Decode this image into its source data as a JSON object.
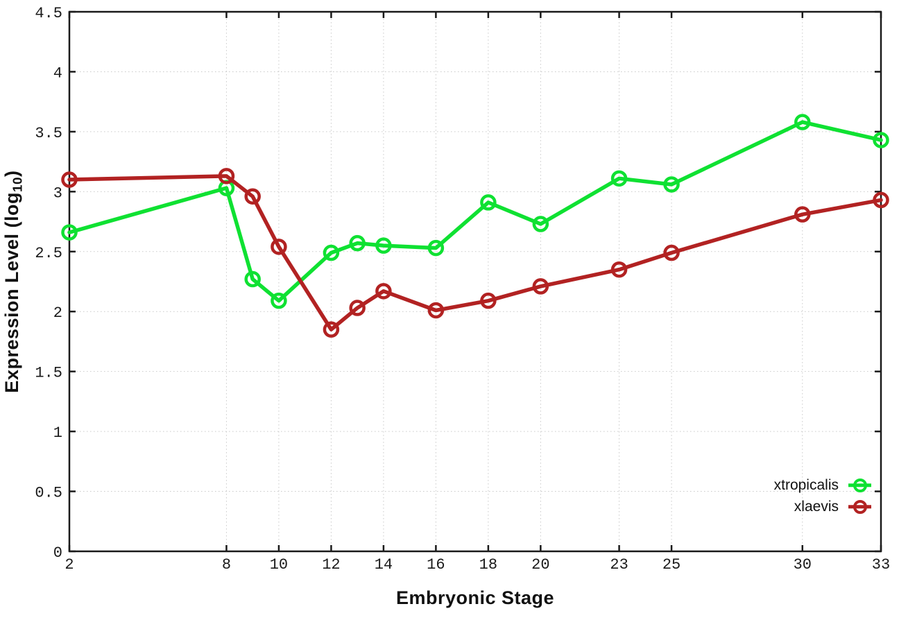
{
  "figure": {
    "y_axis_title": {
      "main": "Expression Level (log",
      "sub": "10",
      "close": ")"
    },
    "x_axis_title": "Embryonic Stage",
    "background": "#ffffff",
    "border_color": "#1a1a1a",
    "grid_color": "#c9c9c9",
    "text_color": "#1a1a1a"
  },
  "chart_data": {
    "type": "line",
    "title": "",
    "xlabel": "Embryonic Stage",
    "ylabel": "Expression Level (log10)",
    "xlim": [
      2,
      33
    ],
    "ylim": [
      0,
      4.5
    ],
    "x_ticks": [
      2,
      8,
      10,
      12,
      14,
      16,
      18,
      20,
      23,
      25,
      30,
      33
    ],
    "x_tick_labels": [
      "2",
      "8",
      "10",
      "12",
      "14",
      "16",
      "18",
      "20",
      "23",
      "25",
      "30",
      "33"
    ],
    "y_ticks": [
      0,
      0.5,
      1,
      1.5,
      2,
      2.5,
      3,
      3.5,
      4,
      4.5
    ],
    "y_tick_labels": [
      "0",
      "0.5",
      "1",
      "1.5",
      "2",
      "2.5",
      "3",
      "3.5",
      "4",
      "4.5"
    ],
    "grid": true,
    "marker": "open-circle",
    "legend_position": "inside-bottom-right",
    "x": [
      2,
      8,
      9,
      10,
      12,
      13,
      14,
      16,
      18,
      20,
      23,
      25,
      30,
      33
    ],
    "series": [
      {
        "name": "xtropicalis",
        "color": "#0fe132",
        "values": [
          2.66,
          3.03,
          2.27,
          2.09,
          2.49,
          2.57,
          2.55,
          2.53,
          2.91,
          2.73,
          3.11,
          3.06,
          3.58,
          3.43
        ]
      },
      {
        "name": "xlaevis",
        "color": "#b22222",
        "values": [
          3.1,
          3.13,
          2.96,
          2.54,
          1.85,
          2.03,
          2.17,
          2.01,
          2.09,
          2.21,
          2.35,
          2.49,
          2.81,
          2.93
        ]
      }
    ]
  }
}
